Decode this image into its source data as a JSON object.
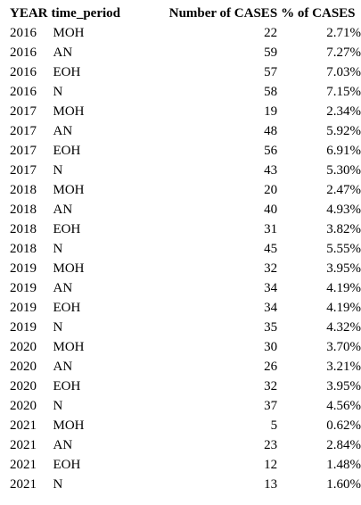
{
  "table": {
    "headers": [
      "YEAR",
      "time_period",
      "Number of CASES",
      "% of CASES"
    ],
    "rows": [
      [
        "2016",
        "MOH",
        "22",
        "2.71%"
      ],
      [
        "2016",
        "AN",
        "59",
        "7.27%"
      ],
      [
        "2016",
        "EOH",
        "57",
        "7.03%"
      ],
      [
        "2016",
        "N",
        "58",
        "7.15%"
      ],
      [
        "2017",
        "MOH",
        "19",
        "2.34%"
      ],
      [
        "2017",
        "AN",
        "48",
        "5.92%"
      ],
      [
        "2017",
        "EOH",
        "56",
        "6.91%"
      ],
      [
        "2017",
        "N",
        "43",
        "5.30%"
      ],
      [
        "2018",
        "MOH",
        "20",
        "2.47%"
      ],
      [
        "2018",
        "AN",
        "40",
        "4.93%"
      ],
      [
        "2018",
        "EOH",
        "31",
        "3.82%"
      ],
      [
        "2018",
        "N",
        "45",
        "5.55%"
      ],
      [
        "2019",
        "MOH",
        "32",
        "3.95%"
      ],
      [
        "2019",
        "AN",
        "34",
        "4.19%"
      ],
      [
        "2019",
        "EOH",
        "34",
        "4.19%"
      ],
      [
        "2019",
        "N",
        "35",
        "4.32%"
      ],
      [
        "2020",
        "MOH",
        "30",
        "3.70%"
      ],
      [
        "2020",
        "AN",
        "26",
        "3.21%"
      ],
      [
        "2020",
        "EOH",
        "32",
        "3.95%"
      ],
      [
        "2020",
        "N",
        "37",
        "4.56%"
      ],
      [
        "2021",
        "MOH",
        "5",
        "0.62%"
      ],
      [
        "2021",
        "AN",
        "23",
        "2.84%"
      ],
      [
        "2021",
        "EOH",
        "12",
        "1.48%"
      ],
      [
        "2021",
        "N",
        "13",
        "1.60%"
      ]
    ]
  }
}
